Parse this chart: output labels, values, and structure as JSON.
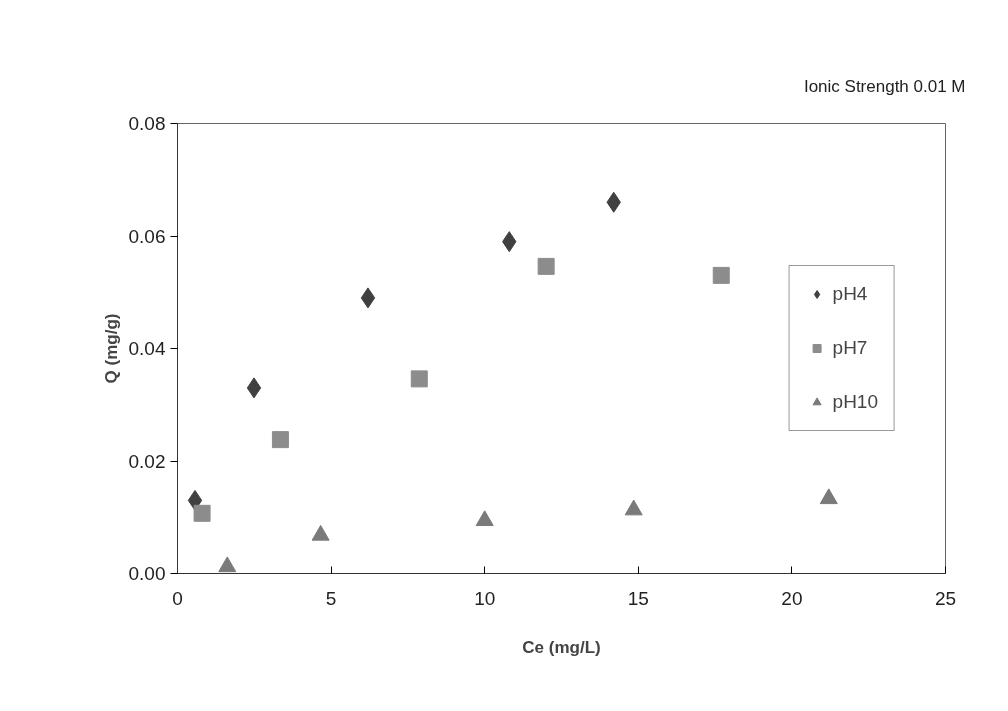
{
  "chart_data": {
    "type": "scatter",
    "xlabel": "Ce (mg/L)",
    "ylabel": "Q (mg/g)",
    "annotations": [
      "Ionic Strength 0.01 M"
    ],
    "xlim": [
      0,
      25
    ],
    "xticks": [
      0,
      5,
      10,
      15,
      20,
      25
    ],
    "ylim": [
      0,
      0.08
    ],
    "yticks": [
      {
        "value": 0,
        "label": "0.00"
      },
      {
        "value": 0.02,
        "label": "0.02"
      },
      {
        "value": 0.04,
        "label": "0.04"
      },
      {
        "value": 0.06,
        "label": "0.06"
      },
      {
        "value": 0.08,
        "label": "0.08"
      }
    ],
    "grid": false,
    "legend": "right",
    "series": [
      {
        "name": "pH4",
        "color": "#404040",
        "marker": "diamond",
        "x": [
          0.57,
          2.49,
          6.2,
          10.8,
          14.2
        ],
        "values": [
          0.013,
          0.033,
          0.049,
          0.059,
          0.066
        ]
      },
      {
        "name": "pH7",
        "color": "#8c8c8c",
        "marker": "square",
        "x": [
          0.8,
          3.35,
          7.87,
          12.0,
          17.7
        ],
        "values": [
          0.0107,
          0.0238,
          0.0346,
          0.0546,
          0.053
        ]
      },
      {
        "name": "pH10",
        "color": "#7a7a7a",
        "marker": "triangle",
        "x": [
          1.62,
          4.66,
          10.0,
          14.85,
          21.2
        ],
        "values": [
          0.0012,
          0.0068,
          0.0094,
          0.0113,
          0.0133
        ]
      }
    ]
  }
}
